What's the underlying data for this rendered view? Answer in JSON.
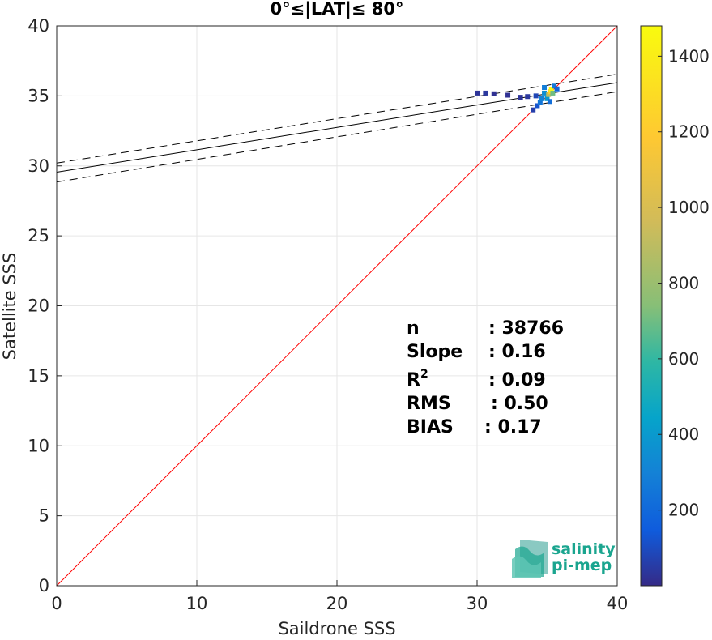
{
  "chart_data": {
    "type": "scatter",
    "title": "0°≤|LAT|≤ 80°",
    "xlabel": "Saildrone SSS",
    "ylabel": "Satellite SSS",
    "xlim": [
      0,
      40
    ],
    "ylim": [
      0,
      40
    ],
    "xticks": [
      0,
      10,
      20,
      30,
      40
    ],
    "yticks": [
      0,
      5,
      10,
      15,
      20,
      25,
      30,
      35,
      40
    ],
    "grid": true,
    "one_to_one_line": {
      "x": [
        0,
        40
      ],
      "y": [
        0,
        40
      ],
      "color": "#ff0000"
    },
    "fit_line": {
      "x": [
        0,
        40
      ],
      "y": [
        29.55,
        35.95
      ],
      "color": "#000000"
    },
    "fit_bounds_upper": {
      "x": [
        0,
        40
      ],
      "y": [
        30.2,
        36.55
      ]
    },
    "fit_bounds_lower": {
      "x": [
        0,
        40
      ],
      "y": [
        28.85,
        35.3
      ]
    },
    "density_points": [
      {
        "x": 30.0,
        "y": 35.2,
        "count": 30
      },
      {
        "x": 30.6,
        "y": 35.2,
        "count": 40
      },
      {
        "x": 31.2,
        "y": 35.15,
        "count": 20
      },
      {
        "x": 32.2,
        "y": 35.05,
        "count": 20
      },
      {
        "x": 33.1,
        "y": 34.9,
        "count": 30
      },
      {
        "x": 33.6,
        "y": 34.95,
        "count": 40
      },
      {
        "x": 34.2,
        "y": 35.0,
        "count": 80
      },
      {
        "x": 34.0,
        "y": 34.0,
        "count": 60
      },
      {
        "x": 34.3,
        "y": 34.3,
        "count": 120
      },
      {
        "x": 34.5,
        "y": 34.5,
        "count": 250
      },
      {
        "x": 34.6,
        "y": 34.8,
        "count": 300
      },
      {
        "x": 34.8,
        "y": 35.2,
        "count": 350
      },
      {
        "x": 34.8,
        "y": 35.6,
        "count": 280
      },
      {
        "x": 35.0,
        "y": 34.8,
        "count": 400
      },
      {
        "x": 35.1,
        "y": 35.1,
        "count": 900
      },
      {
        "x": 35.2,
        "y": 35.3,
        "count": 1200
      },
      {
        "x": 35.3,
        "y": 35.45,
        "count": 1450
      },
      {
        "x": 35.4,
        "y": 35.2,
        "count": 700
      },
      {
        "x": 35.5,
        "y": 35.7,
        "count": 260
      },
      {
        "x": 35.7,
        "y": 35.5,
        "count": 180
      },
      {
        "x": 35.2,
        "y": 34.6,
        "count": 220
      }
    ],
    "colorbar": {
      "min": 0,
      "max": 1480,
      "ticks": [
        200,
        400,
        600,
        800,
        1000,
        1200,
        1400
      ]
    },
    "stats": [
      {
        "label": "n",
        "value": ": 38766"
      },
      {
        "label": "Slope",
        "value": ": 0.16"
      },
      {
        "label": "R",
        "sup": "2",
        "value": ": 0.09"
      },
      {
        "label": "RMS",
        "value": ": 0.50"
      },
      {
        "label": "BIAS",
        "value": ": 0.17"
      }
    ]
  },
  "logo": {
    "line1": "salinity",
    "line2": "pi-mep"
  },
  "colors": {
    "one_to_one": "#ff0000",
    "fit": "#000000",
    "grid": "#e6e6e6",
    "logo_teal": "#1aa58f"
  }
}
